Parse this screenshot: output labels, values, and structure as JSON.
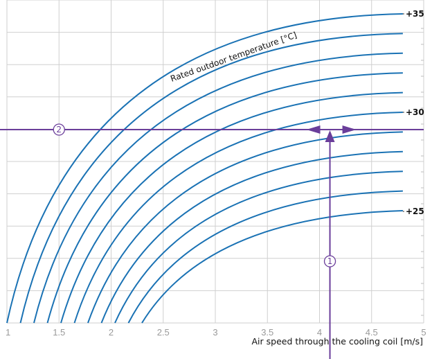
{
  "chart_data": {
    "type": "line",
    "title": "",
    "xlabel": "Air  speed through the cooling coil [m/s]",
    "ylabel": "",
    "xlim": [
      1,
      5
    ],
    "x_ticks": [
      "1",
      "1.5",
      "2",
      "2.5",
      "3",
      "3.5",
      "4",
      "4.5",
      "5"
    ],
    "grid": true,
    "curve_annotation": "Rated outdoor temperature [°C]",
    "right_labels": [
      "+35",
      "+30",
      "+25"
    ],
    "series_count": 11,
    "colors": {
      "curves": "#1a72b4",
      "guide_lines": "#6a3d9a",
      "grid": "#cfcfcf",
      "tick_text": "#9a9a9a"
    },
    "markers": [
      {
        "label": "1",
        "x": 4.1
      },
      {
        "label": "2",
        "x": 1.5
      }
    ],
    "operating_point": {
      "x": 4.1,
      "curve_between": [
        "+30",
        "+29"
      ]
    }
  }
}
